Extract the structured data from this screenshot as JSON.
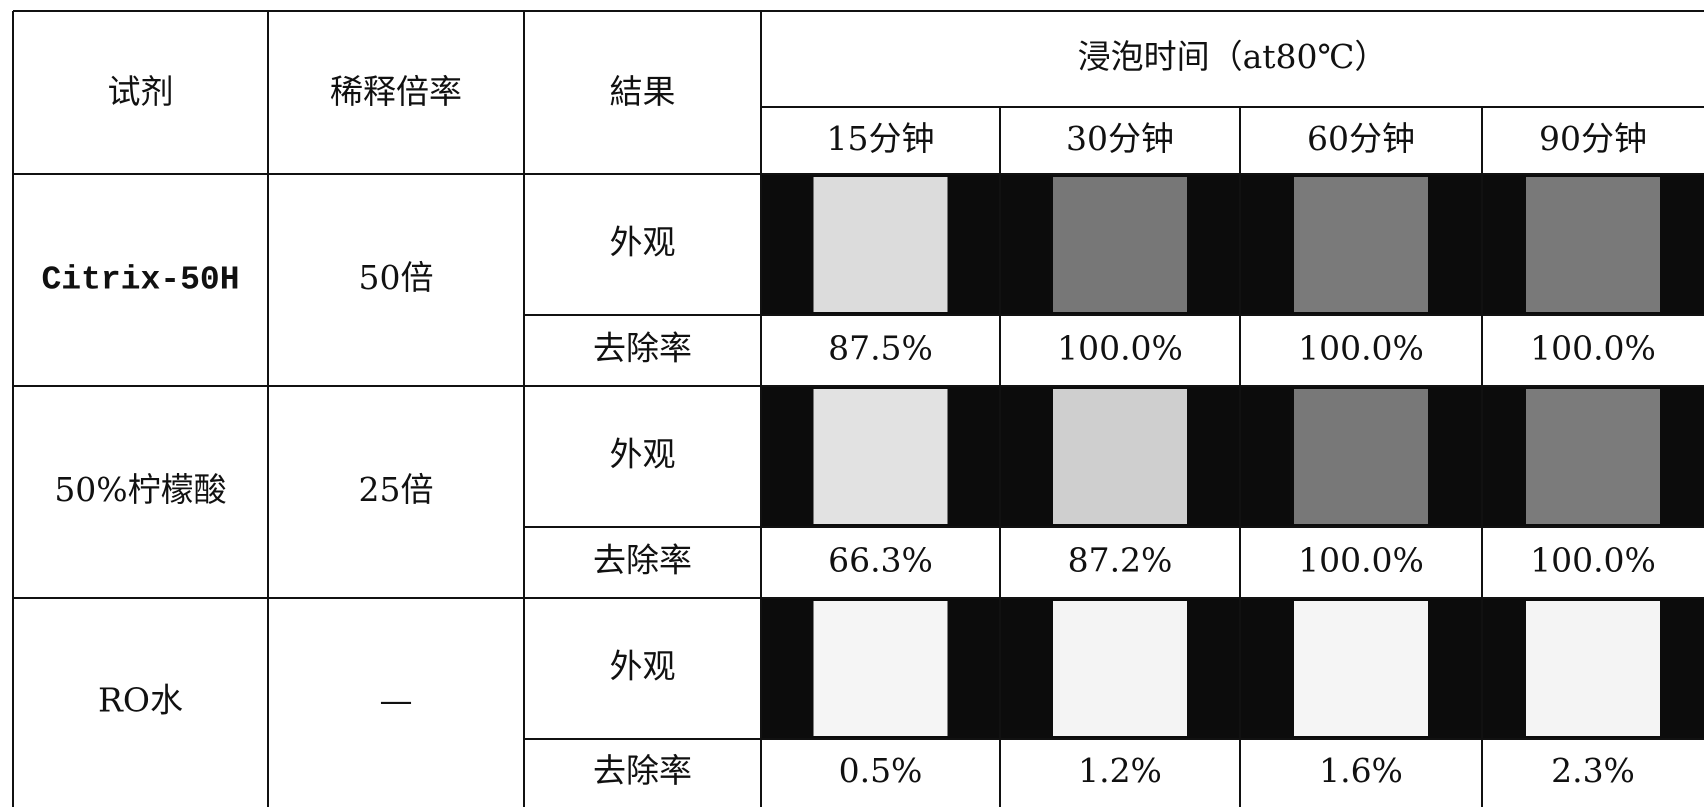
{
  "header": {
    "reagent": "试剂",
    "dilution": "稀释倍率",
    "result": "結果",
    "soak_time": "浸泡时间（at80℃）",
    "times": [
      "15分钟",
      "30分钟",
      "60分钟",
      "90分钟"
    ]
  },
  "rows": [
    {
      "reagent": "Citrix-50H",
      "dilution": "50倍",
      "appearance": "外观",
      "removal_label": "去除率",
      "removal": [
        "87.5%",
        "100.0%",
        "100.0%",
        "100.0%"
      ]
    },
    {
      "reagent": "50%柠檬酸",
      "dilution": "25倍",
      "appearance": "外观",
      "removal_label": "去除率",
      "removal": [
        "66.3%",
        "87.2%",
        "100.0%",
        "100.0%"
      ]
    },
    {
      "reagent": "RO水",
      "dilution": "—",
      "appearance": "外观",
      "removal_label": "去除率",
      "removal": [
        "0.5%",
        "1.2%",
        "1.6%",
        "2.3%"
      ]
    }
  ]
}
